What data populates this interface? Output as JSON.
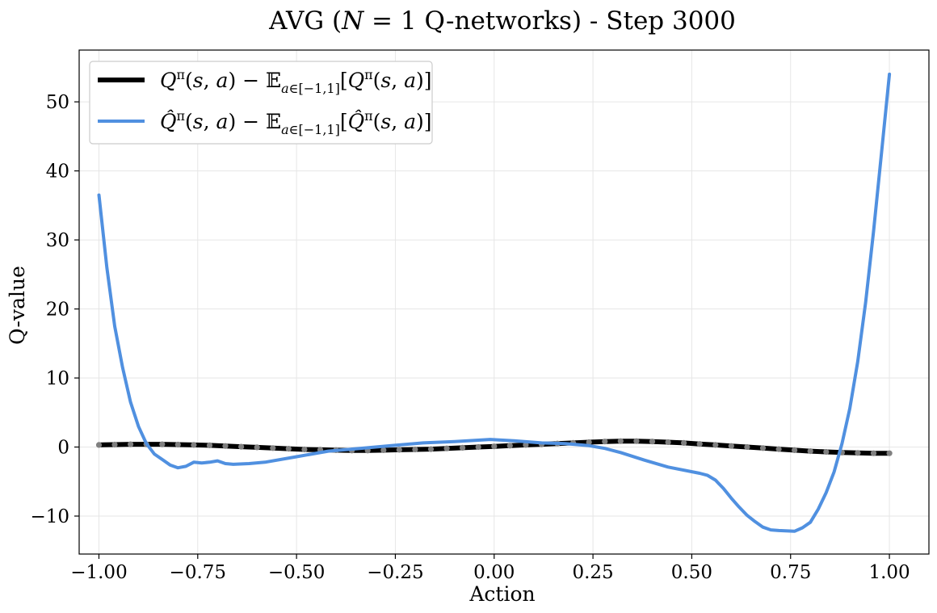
{
  "chart_data": {
    "type": "line",
    "title": "AVG (N = 1 Q-networks) - Step 3000",
    "title_parts": [
      "AVG (",
      "N",
      " = 1 Q-networks) - Step 3000"
    ],
    "xlabel": "Action",
    "ylabel": "Q-value",
    "xlim": [
      -1.05,
      1.1
    ],
    "ylim": [
      -15.5,
      57.5
    ],
    "x_ticks": [
      -1.0,
      -0.75,
      -0.5,
      -0.25,
      0.0,
      0.25,
      0.5,
      0.75,
      1.0
    ],
    "x_tick_labels": [
      "−1.00",
      "−0.75",
      "−0.50",
      "−0.25",
      "0.00",
      "0.25",
      "0.50",
      "0.75",
      "1.00"
    ],
    "y_ticks": [
      -10,
      0,
      10,
      20,
      30,
      40,
      50
    ],
    "y_tick_labels": [
      "−10",
      "0",
      "10",
      "20",
      "30",
      "40",
      "50"
    ],
    "grid": true,
    "legend_position": "top-left",
    "series": [
      {
        "name": "Qπ(s,a) − E a∈[−1,1] [Qπ(s,a)]",
        "color": "#000000",
        "marker_color": "#808080",
        "x": [
          -1.0,
          -0.96,
          -0.92,
          -0.88,
          -0.84,
          -0.8,
          -0.76,
          -0.72,
          -0.68,
          -0.64,
          -0.6,
          -0.56,
          -0.52,
          -0.48,
          -0.44,
          -0.4,
          -0.36,
          -0.32,
          -0.28,
          -0.24,
          -0.2,
          -0.16,
          -0.12,
          -0.08,
          -0.04,
          0.0,
          0.04,
          0.08,
          0.12,
          0.16,
          0.2,
          0.24,
          0.28,
          0.32,
          0.36,
          0.4,
          0.44,
          0.48,
          0.52,
          0.56,
          0.6,
          0.64,
          0.68,
          0.72,
          0.76,
          0.8,
          0.84,
          0.88,
          0.92,
          0.96,
          1.0
        ],
        "y": [
          0.3,
          0.35,
          0.4,
          0.4,
          0.4,
          0.35,
          0.3,
          0.25,
          0.15,
          0.05,
          -0.05,
          -0.15,
          -0.25,
          -0.35,
          -0.4,
          -0.45,
          -0.5,
          -0.5,
          -0.45,
          -0.4,
          -0.35,
          -0.3,
          -0.2,
          -0.1,
          0.0,
          0.1,
          0.2,
          0.3,
          0.4,
          0.5,
          0.6,
          0.7,
          0.8,
          0.85,
          0.85,
          0.8,
          0.7,
          0.6,
          0.45,
          0.3,
          0.15,
          0.0,
          -0.15,
          -0.3,
          -0.45,
          -0.6,
          -0.7,
          -0.8,
          -0.85,
          -0.9,
          -0.9
        ]
      },
      {
        "name": "Q̂π(s,a) − E a∈[−1,1] [Q̂π(s,a)]",
        "color": "#5090e0",
        "x": [
          -1.0,
          -0.98,
          -0.96,
          -0.94,
          -0.92,
          -0.9,
          -0.88,
          -0.86,
          -0.84,
          -0.82,
          -0.8,
          -0.78,
          -0.76,
          -0.74,
          -0.72,
          -0.7,
          -0.68,
          -0.66,
          -0.62,
          -0.58,
          -0.5,
          -0.42,
          -0.34,
          -0.26,
          -0.18,
          -0.1,
          -0.01,
          0.05,
          0.12,
          0.18,
          0.24,
          0.28,
          0.32,
          0.38,
          0.44,
          0.52,
          0.54,
          0.56,
          0.58,
          0.6,
          0.62,
          0.64,
          0.66,
          0.68,
          0.7,
          0.72,
          0.76,
          0.78,
          0.8,
          0.82,
          0.84,
          0.86,
          0.88,
          0.9,
          0.92,
          0.94,
          0.96,
          0.98,
          1.0
        ],
        "y": [
          36.5,
          26.0,
          17.5,
          11.5,
          6.5,
          3.0,
          0.5,
          -1.0,
          -1.8,
          -2.6,
          -3.0,
          -2.8,
          -2.2,
          -2.3,
          -2.2,
          -2.0,
          -2.4,
          -2.5,
          -2.4,
          -2.2,
          -1.4,
          -0.6,
          -0.2,
          0.2,
          0.6,
          0.8,
          1.1,
          0.9,
          0.6,
          0.5,
          0.2,
          -0.2,
          -0.8,
          -1.9,
          -2.9,
          -3.8,
          -4.1,
          -4.8,
          -6.0,
          -7.4,
          -8.7,
          -9.9,
          -10.8,
          -11.6,
          -12.0,
          -12.1,
          -12.2,
          -11.7,
          -10.9,
          -9.0,
          -6.6,
          -3.6,
          0.5,
          5.6,
          12.4,
          21.0,
          31.3,
          42.6,
          54.0
        ]
      }
    ]
  }
}
